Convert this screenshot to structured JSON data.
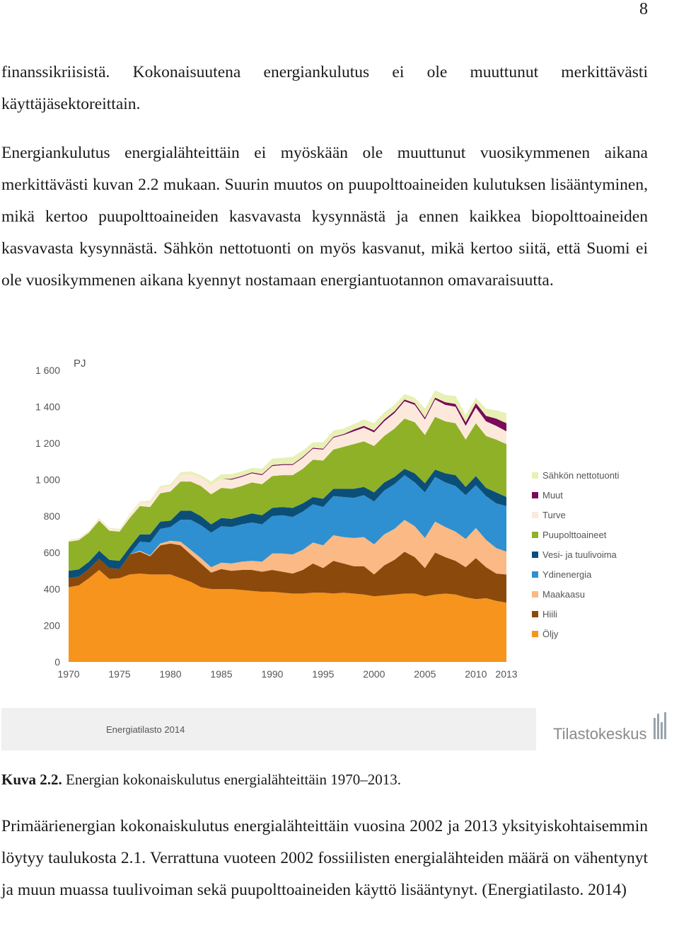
{
  "page_number": "8",
  "paragraphs": {
    "p1": "finanssikriisistä. Kokonaisuutena energiankulutus ei ole muuttunut merkittävästi käyttäjäsektoreittain.",
    "p2": "Energiankulutus energialähteittäin ei myöskään ole muuttunut vuosikymmenen aikana merkittävästi kuvan 2.2 mukaan. Suurin muutos on puupolttoaineiden kulutuksen lisääntyminen, mikä kertoo puupolttoaineiden kasvavasta kysynnästä ja ennen kaikkea biopolttoaineiden kasvavasta kysynnästä. Sähkön nettotuonti on myös kasvanut, mikä kertoo siitä, että Suomi ei ole vuosikymmenen aikana kyennyt nostamaan energiantuotannon omavaraisuutta.",
    "p3": "Primäärienergian kokonaiskulutus energialähteittäin vuosina 2002 ja 2013 yksityiskohtaisemmin löytyy taulukosta 2.1. Verrattuna vuoteen 2002 fossiilisten energialähteiden määrä on vähentynyt ja muun muassa tuulivoiman sekä puupolttoaineiden käyttö lisääntynyt. (Energiatilasto. 2014)"
  },
  "caption": {
    "label": "Kuva 2.2.",
    "text": " Energian kokonaiskulutus energialähteittäin 1970–2013."
  },
  "figure_footer": {
    "source_label": "Energiatilasto 2014",
    "logo_text": "Tilastokeskus"
  },
  "chart_data": {
    "type": "area",
    "stacked": true,
    "ylabel": "PJ",
    "ylim": [
      0,
      1600
    ],
    "yticks": [
      0,
      200,
      400,
      600,
      800,
      1000,
      1200,
      1400,
      1600
    ],
    "ytick_labels": [
      "0",
      "200",
      "400",
      "600",
      "800",
      "1 000",
      "1 200",
      "1 400",
      "1 600"
    ],
    "xticks": [
      1970,
      1975,
      1980,
      1985,
      1990,
      1995,
      2000,
      2005,
      2010,
      2013
    ],
    "grid": false,
    "legend_position": "right",
    "x": [
      1970,
      1971,
      1972,
      1973,
      1974,
      1975,
      1976,
      1977,
      1978,
      1979,
      1980,
      1981,
      1982,
      1983,
      1984,
      1985,
      1986,
      1987,
      1988,
      1989,
      1990,
      1991,
      1992,
      1993,
      1994,
      1995,
      1996,
      1997,
      1998,
      1999,
      2000,
      2001,
      2002,
      2003,
      2004,
      2005,
      2006,
      2007,
      2008,
      2009,
      2010,
      2011,
      2012,
      2013
    ],
    "series": [
      {
        "name": "Öljy",
        "color": "#f7941d",
        "values": [
          410,
          420,
          460,
          505,
          455,
          460,
          480,
          485,
          480,
          480,
          480,
          460,
          440,
          410,
          400,
          400,
          400,
          395,
          390,
          385,
          385,
          380,
          375,
          375,
          380,
          380,
          375,
          380,
          375,
          370,
          360,
          365,
          370,
          375,
          375,
          360,
          370,
          375,
          370,
          355,
          345,
          350,
          335,
          325
        ]
      },
      {
        "name": "Hiili",
        "color": "#8b4a0b",
        "values": [
          50,
          48,
          50,
          60,
          60,
          50,
          110,
          120,
          100,
          160,
          170,
          180,
          150,
          130,
          90,
          110,
          100,
          110,
          115,
          110,
          120,
          115,
          110,
          130,
          160,
          135,
          180,
          160,
          150,
          155,
          120,
          165,
          190,
          230,
          200,
          155,
          230,
          200,
          185,
          165,
          225,
          170,
          150,
          155
        ]
      },
      {
        "name": "Maakaasu",
        "color": "#fbb985",
        "values": [
          0,
          0,
          0,
          0,
          0,
          0,
          0,
          5,
          5,
          10,
          15,
          20,
          25,
          30,
          30,
          35,
          40,
          45,
          50,
          55,
          90,
          100,
          105,
          110,
          115,
          125,
          140,
          145,
          155,
          160,
          165,
          170,
          170,
          175,
          170,
          165,
          170,
          165,
          160,
          155,
          165,
          150,
          140,
          125
        ]
      },
      {
        "name": "Ydinenergia",
        "color": "#2e90d0",
        "values": [
          0,
          0,
          0,
          0,
          0,
          0,
          0,
          50,
          70,
          80,
          75,
          120,
          165,
          180,
          190,
          200,
          200,
          205,
          210,
          205,
          205,
          210,
          205,
          210,
          210,
          210,
          215,
          220,
          220,
          230,
          235,
          240,
          245,
          245,
          240,
          250,
          245,
          245,
          250,
          240,
          235,
          240,
          245,
          250
        ]
      },
      {
        "name": "Vesi- ja tuulivoima",
        "color": "#0b4f78",
        "values": [
          40,
          40,
          40,
          45,
          45,
          45,
          40,
          40,
          45,
          40,
          35,
          50,
          50,
          50,
          45,
          45,
          45,
          45,
          50,
          50,
          45,
          45,
          50,
          45,
          40,
          45,
          40,
          45,
          50,
          45,
          50,
          45,
          40,
          35,
          50,
          50,
          40,
          50,
          60,
          45,
          50,
          45,
          60,
          50
        ]
      },
      {
        "name": "Puupolttoaineet",
        "color": "#8fb128",
        "values": [
          160,
          160,
          160,
          165,
          160,
          160,
          160,
          155,
          150,
          155,
          160,
          160,
          160,
          165,
          165,
          165,
          165,
          165,
          170,
          170,
          175,
          175,
          180,
          190,
          205,
          210,
          215,
          230,
          245,
          250,
          255,
          255,
          265,
          275,
          280,
          265,
          290,
          285,
          285,
          260,
          290,
          285,
          290,
          290
        ]
      },
      {
        "name": "Turve",
        "color": "#fce9dc",
        "values": [
          5,
          5,
          5,
          10,
          10,
          10,
          15,
          20,
          25,
          30,
          30,
          35,
          40,
          45,
          50,
          50,
          50,
          50,
          50,
          50,
          55,
          55,
          55,
          60,
          60,
          60,
          65,
          65,
          70,
          75,
          75,
          80,
          85,
          95,
          95,
          85,
          95,
          90,
          90,
          75,
          85,
          80,
          75,
          70
        ]
      },
      {
        "name": "Muut",
        "color": "#7a0a5a",
        "values": [
          0,
          0,
          0,
          0,
          0,
          0,
          0,
          0,
          0,
          0,
          0,
          0,
          0,
          0,
          0,
          0,
          5,
          5,
          5,
          5,
          5,
          5,
          5,
          5,
          5,
          5,
          5,
          5,
          10,
          10,
          10,
          10,
          10,
          10,
          10,
          10,
          10,
          15,
          15,
          20,
          25,
          30,
          40,
          45
        ]
      },
      {
        "name": "Sähkön nettotuonti",
        "color": "#e8f0b5",
        "values": [
          5,
          5,
          5,
          5,
          5,
          5,
          5,
          5,
          10,
          10,
          10,
          15,
          15,
          15,
          20,
          25,
          25,
          25,
          25,
          30,
          35,
          35,
          40,
          35,
          30,
          35,
          35,
          30,
          30,
          35,
          40,
          40,
          35,
          30,
          30,
          50,
          40,
          40,
          45,
          40,
          30,
          40,
          45,
          55
        ]
      }
    ]
  }
}
